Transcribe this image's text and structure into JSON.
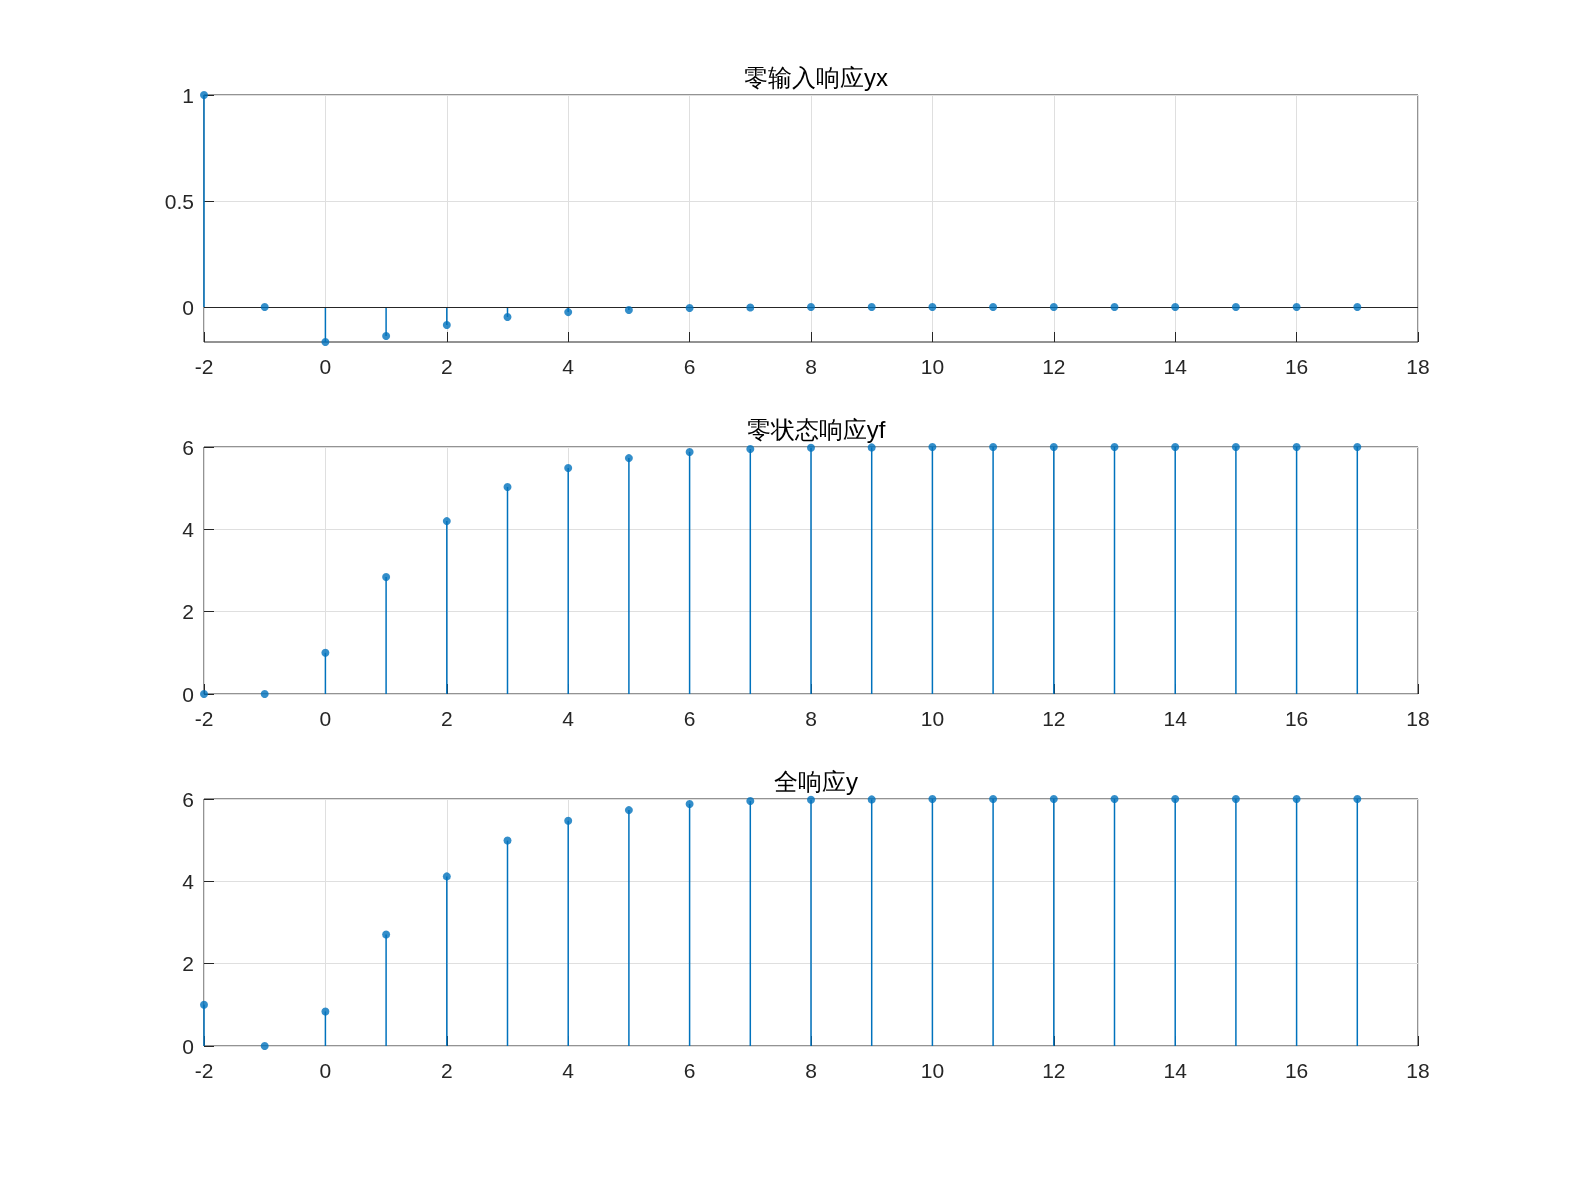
{
  "chart_data": [
    {
      "type": "lollipop",
      "title": "零输入响应yx",
      "x": [
        -2,
        -1,
        0,
        1,
        2,
        3,
        4,
        5,
        6,
        7,
        8,
        9,
        10,
        11,
        12,
        13,
        14,
        15,
        16,
        17
      ],
      "series": [
        {
          "color": "#0072bd",
          "values": [
            1,
            0,
            -0.165,
            -0.137,
            -0.085,
            -0.047,
            -0.024,
            -0.014,
            -0.005,
            -0.002,
            0,
            0,
            0,
            0,
            0,
            0,
            0,
            0,
            0,
            0
          ]
        }
      ],
      "xlim": [
        -2,
        18
      ],
      "xticks": [
        -2,
        0,
        2,
        4,
        6,
        8,
        10,
        12,
        14,
        16,
        18
      ],
      "ylim": [
        -0.165,
        1
      ],
      "yticks": [
        0,
        0.5,
        1
      ],
      "grid": true,
      "marker": "circle",
      "ref_lines": [
        {
          "axis": "y",
          "value": 0,
          "color": "#262626"
        }
      ]
    },
    {
      "type": "lollipop",
      "title": "零状态响应yf",
      "x": [
        -2,
        -1,
        0,
        1,
        2,
        3,
        4,
        5,
        6,
        7,
        8,
        9,
        10,
        11,
        12,
        13,
        14,
        15,
        16,
        17
      ],
      "series": [
        {
          "color": "#0072bd",
          "values": [
            0,
            0,
            1,
            2.84,
            4.2,
            5.03,
            5.49,
            5.73,
            5.88,
            5.95,
            5.98,
            5.99,
            6,
            6,
            6,
            6,
            6,
            6,
            6,
            6
          ]
        }
      ],
      "xlim": [
        -2,
        18
      ],
      "xticks": [
        -2,
        0,
        2,
        4,
        6,
        8,
        10,
        12,
        14,
        16,
        18
      ],
      "ylim": [
        0,
        6
      ],
      "yticks": [
        0,
        2,
        4,
        6
      ],
      "grid": true,
      "marker": "circle"
    },
    {
      "type": "lollipop",
      "title": "全响应y",
      "x": [
        -2,
        -1,
        0,
        1,
        2,
        3,
        4,
        5,
        6,
        7,
        8,
        9,
        10,
        11,
        12,
        13,
        14,
        15,
        16,
        17
      ],
      "series": [
        {
          "color": "#0072bd",
          "values": [
            1,
            0,
            0.84,
            2.71,
            4.12,
            4.99,
            5.47,
            5.73,
            5.88,
            5.95,
            5.98,
            5.99,
            6,
            6,
            6,
            6,
            6,
            6,
            6,
            6
          ]
        }
      ],
      "xlim": [
        -2,
        18
      ],
      "xticks": [
        -2,
        0,
        2,
        4,
        6,
        8,
        10,
        12,
        14,
        16,
        18
      ],
      "ylim": [
        0,
        6
      ],
      "yticks": [
        0,
        2,
        4,
        6
      ],
      "grid": true,
      "marker": "circle"
    }
  ]
}
